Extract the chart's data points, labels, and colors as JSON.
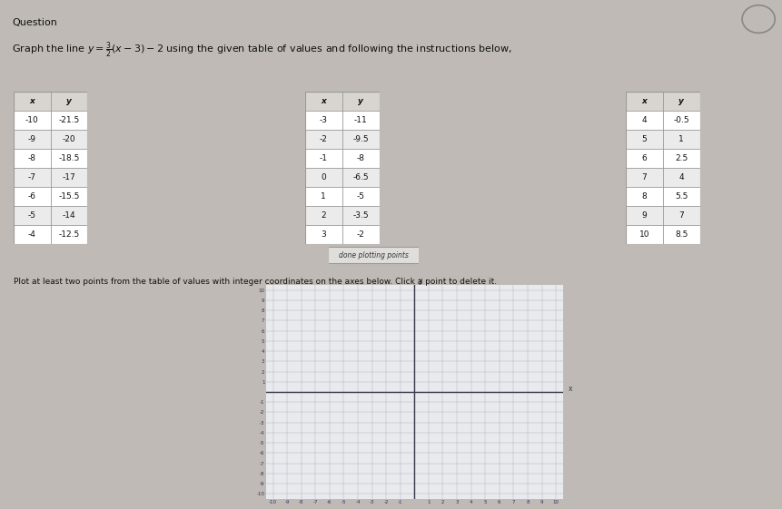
{
  "title": "Question",
  "equation_text": "Graph the line y = 3/2 (x - 3) - 2 using the given table of values and following the instructions below,",
  "table1": {
    "x": [
      -10,
      -9,
      -8,
      -7,
      -6,
      -5,
      -4
    ],
    "y": [
      -21.5,
      -20,
      -18.5,
      -17,
      -15.5,
      -14,
      -12.5
    ]
  },
  "table2": {
    "x": [
      -3,
      -2,
      -1,
      0,
      1,
      2,
      3
    ],
    "y": [
      -11,
      -9.5,
      -8,
      -6.5,
      -5,
      -3.5,
      -2
    ]
  },
  "table3": {
    "x": [
      4,
      5,
      6,
      7,
      8,
      9,
      10
    ],
    "y": [
      -0.5,
      1,
      2.5,
      4,
      5.5,
      7,
      8.5
    ]
  },
  "button_text": "done plotting points",
  "instruction": "Plot at least two points from the table of values with integer coordinates on the axes below. Click a point to delete it.",
  "bg_color": "#bfbab5",
  "content_bg": "#d0cbc6",
  "table_border": "#999999",
  "table_header_bg": "#d8d4d0",
  "table_row_bg1": "#ffffff",
  "table_row_bg2": "#ebebeb",
  "graph_bg": "#e8eaee",
  "graph_grid_color": "#b0b5c0",
  "graph_axis_color": "#3a3a50",
  "tick_label_color": "#333355",
  "text_color": "#111111",
  "button_bg": "#e0dedd",
  "button_border": "#999999"
}
